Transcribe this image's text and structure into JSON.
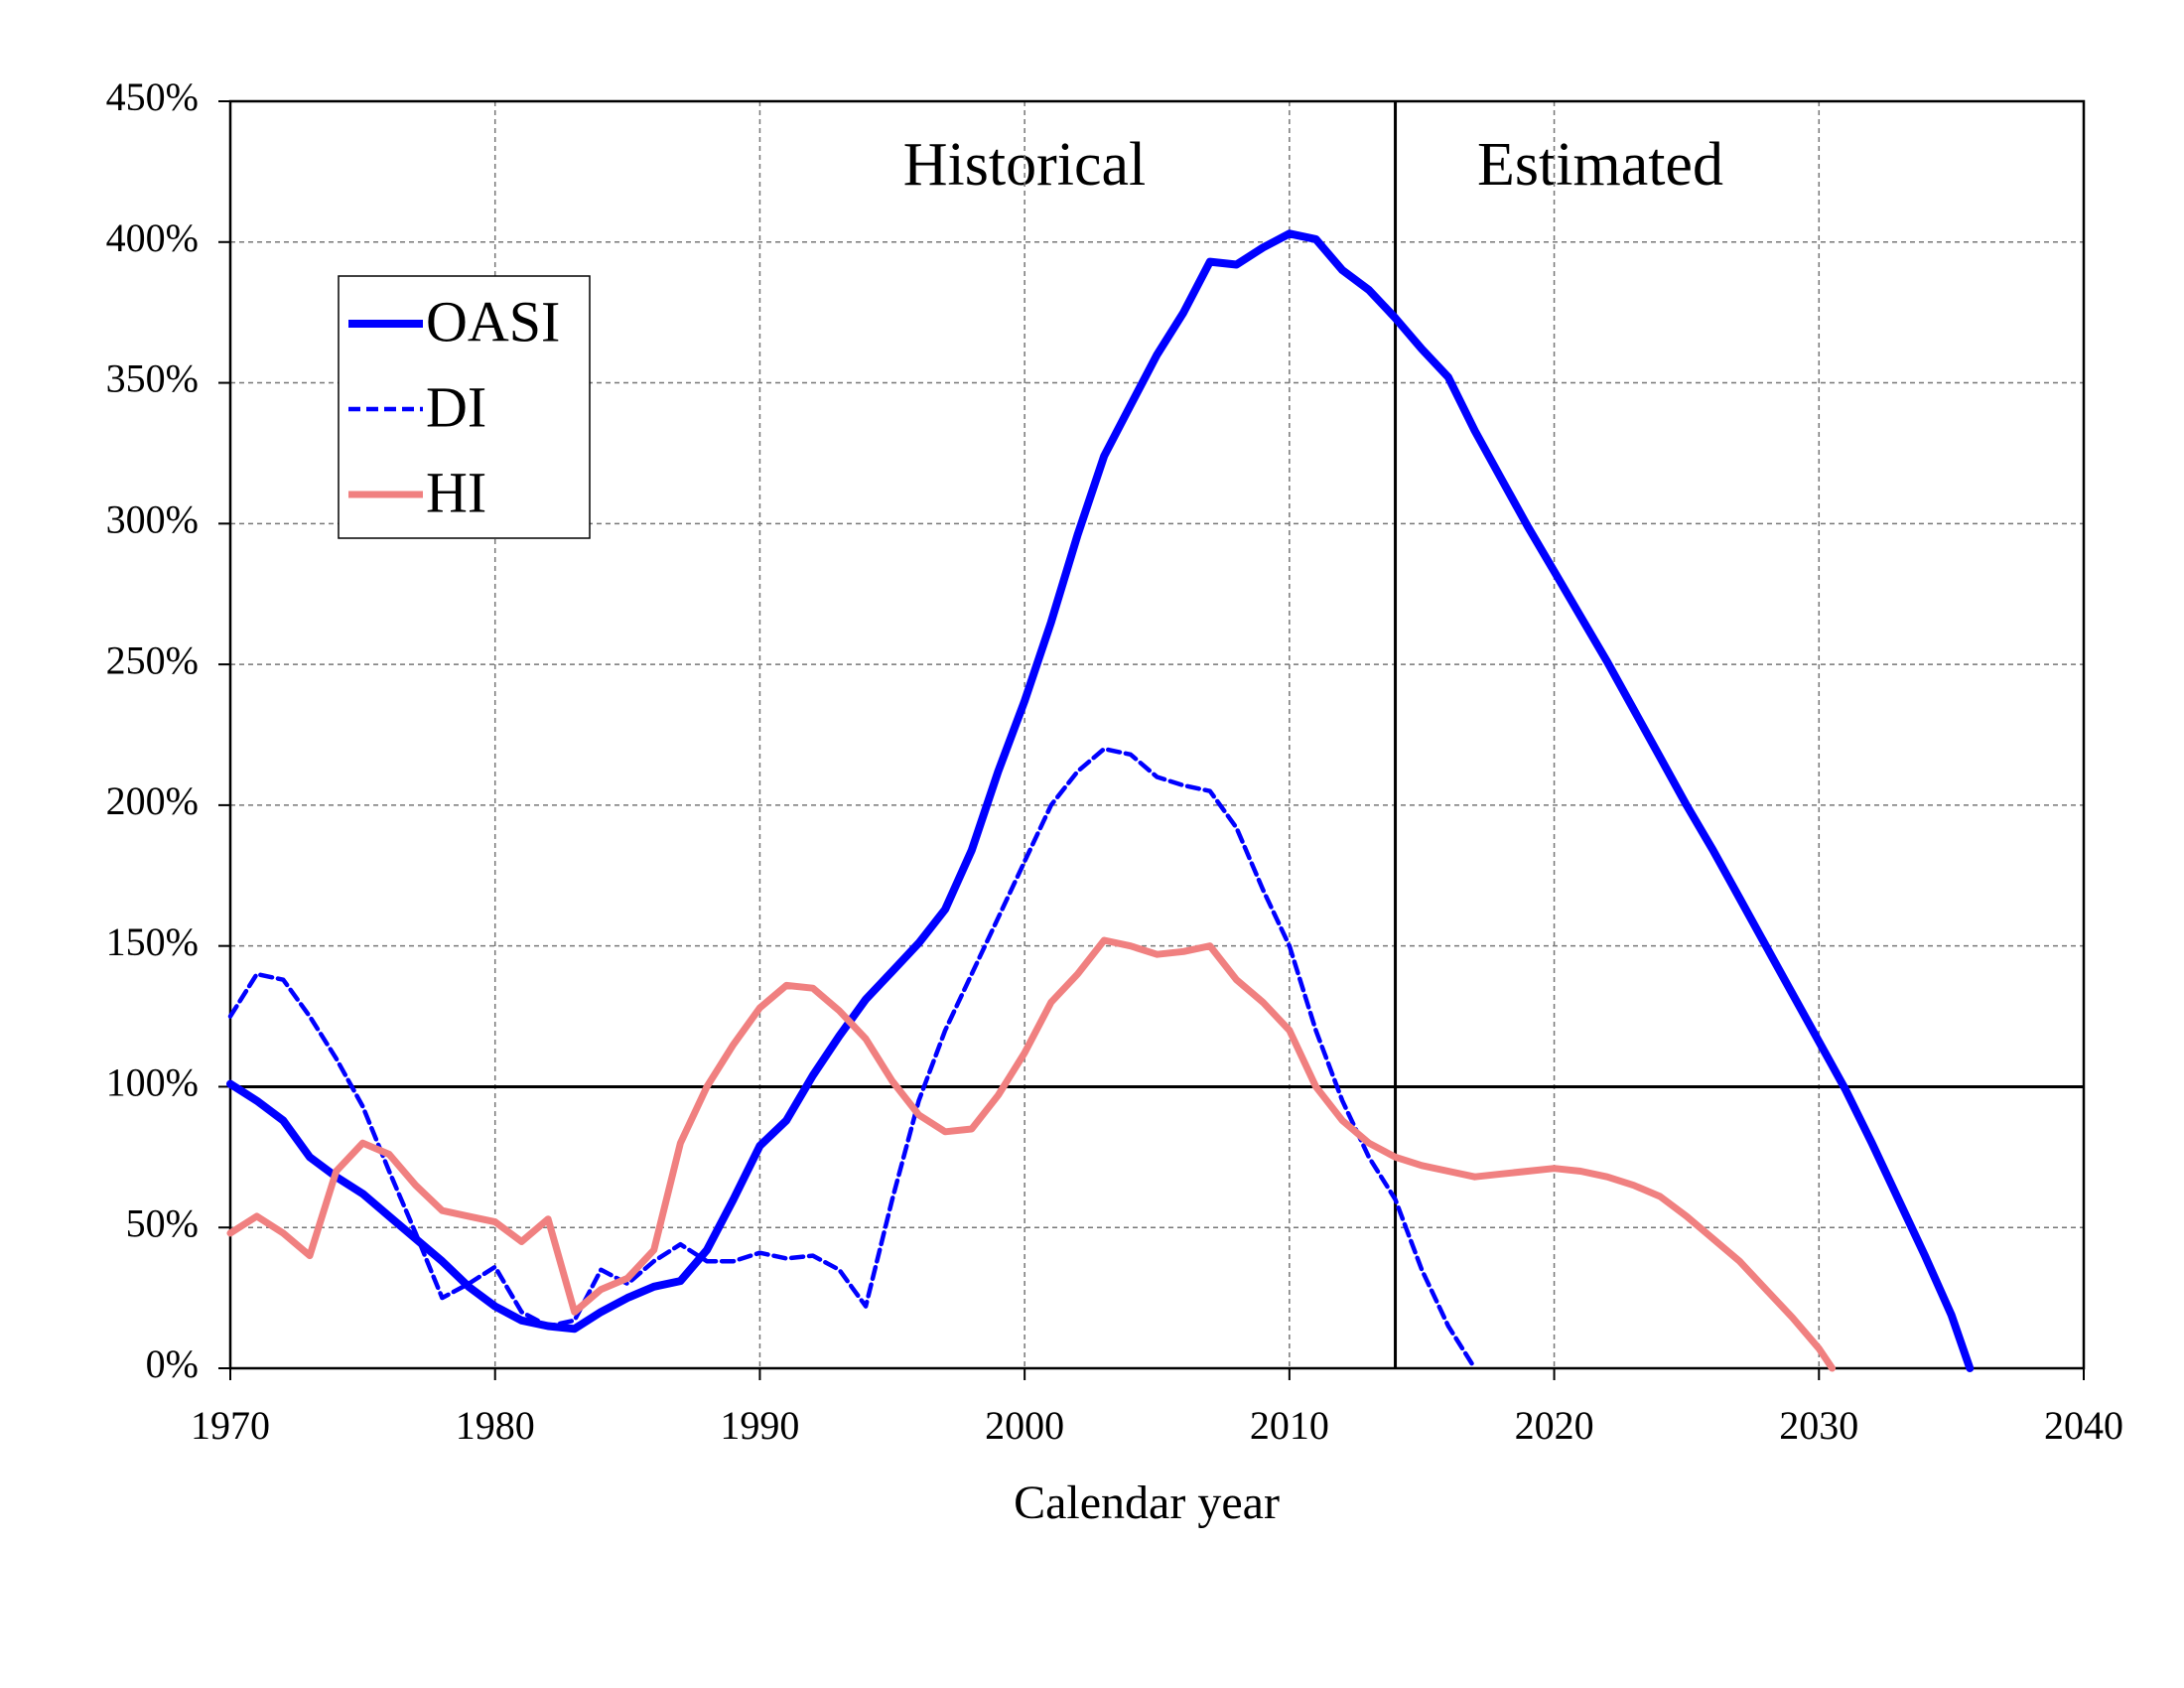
{
  "chart_data": {
    "type": "line",
    "x_label": "Calendar year",
    "annotations": [
      "Historical",
      "Estimated"
    ],
    "hline": 100,
    "vline": 2014,
    "xlim": [
      1970,
      2040
    ],
    "xticks": [
      1970,
      1980,
      1990,
      2000,
      2010,
      2020,
      2030,
      2040
    ],
    "ylim": [
      0,
      450
    ],
    "yticks": [
      {
        "value": 0,
        "label": "0%"
      },
      {
        "value": 50,
        "label": "50%"
      },
      {
        "value": 100,
        "label": "100%"
      },
      {
        "value": 150,
        "label": "150%"
      },
      {
        "value": 200,
        "label": "200%"
      },
      {
        "value": 250,
        "label": "250%"
      },
      {
        "value": 300,
        "label": "300%"
      },
      {
        "value": 350,
        "label": "350%"
      },
      {
        "value": 400,
        "label": "400%"
      },
      {
        "value": 450,
        "label": "450%"
      }
    ],
    "grid": true,
    "legend": "upper left",
    "series": [
      {
        "name": "OASI",
        "color": "#0000ff",
        "style": "solid",
        "x": [
          1970,
          1971,
          1972,
          1973,
          1974,
          1975,
          1976,
          1977,
          1978,
          1979,
          1980,
          1981,
          1982,
          1983,
          1984,
          1985,
          1986,
          1987,
          1988,
          1989,
          1990,
          1991,
          1992,
          1993,
          1994,
          1995,
          1996,
          1997,
          1998,
          1999,
          2000,
          2001,
          2002,
          2003,
          2004,
          2005,
          2006,
          2007,
          2008,
          2009,
          2010,
          2011,
          2012,
          2013,
          2014,
          2015,
          2016,
          2017,
          2018,
          2019,
          2020,
          2021,
          2022,
          2023,
          2024,
          2025,
          2026,
          2027,
          2028,
          2029,
          2030,
          2031,
          2032,
          2033,
          2034,
          2035,
          2035.7
        ],
        "values": [
          101,
          95,
          88,
          75,
          68,
          62,
          54,
          46,
          38,
          29,
          22,
          17,
          15,
          14,
          20,
          25,
          29,
          31,
          42,
          60,
          79,
          88,
          104,
          118,
          131,
          141,
          151,
          163,
          184,
          212,
          237,
          265,
          296,
          324,
          342,
          360,
          375,
          393,
          392,
          398,
          403,
          401,
          390,
          383,
          373,
          362,
          352,
          333,
          316,
          299,
          283,
          267,
          251,
          234,
          217,
          200,
          184,
          167,
          150,
          133,
          116,
          99,
          80,
          60,
          40,
          19,
          0
        ]
      },
      {
        "name": "DI",
        "color": "#0000ff",
        "style": "dashed",
        "x": [
          1970,
          1971,
          1972,
          1973,
          1974,
          1975,
          1976,
          1977,
          1978,
          1979,
          1980,
          1981,
          1982,
          1983,
          1984,
          1985,
          1986,
          1987,
          1988,
          1989,
          1990,
          1991,
          1992,
          1993,
          1994,
          1995,
          1996,
          1997,
          1998,
          1999,
          2000,
          2001,
          2002,
          2003,
          2004,
          2005,
          2006,
          2007,
          2008,
          2009,
          2010,
          2011,
          2012,
          2013,
          2014,
          2015,
          2016,
          2017
        ],
        "values": [
          125,
          140,
          138,
          125,
          110,
          93,
          70,
          48,
          25,
          30,
          36,
          20,
          15,
          17,
          35,
          30,
          38,
          44,
          38,
          38,
          41,
          39,
          40,
          35,
          22,
          60,
          95,
          120,
          140,
          160,
          180,
          200,
          212,
          220,
          218,
          210,
          207,
          205,
          192,
          170,
          150,
          120,
          95,
          75,
          60,
          35,
          15,
          0
        ]
      },
      {
        "name": "HI",
        "color": "#f08080",
        "style": "solid",
        "x": [
          1970,
          1971,
          1972,
          1973,
          1974,
          1975,
          1976,
          1977,
          1978,
          1979,
          1980,
          1981,
          1982,
          1983,
          1984,
          1985,
          1986,
          1987,
          1988,
          1989,
          1990,
          1991,
          1992,
          1993,
          1994,
          1995,
          1996,
          1997,
          1998,
          1999,
          2000,
          2001,
          2002,
          2003,
          2004,
          2005,
          2006,
          2007,
          2008,
          2009,
          2010,
          2011,
          2012,
          2013,
          2014,
          2015,
          2016,
          2017,
          2018,
          2019,
          2020,
          2021,
          2022,
          2023,
          2024,
          2025,
          2026,
          2027,
          2028,
          2029,
          2030,
          2030.5
        ],
        "values": [
          48,
          54,
          48,
          40,
          70,
          80,
          76,
          65,
          56,
          54,
          52,
          45,
          53,
          20,
          28,
          32,
          42,
          80,
          100,
          115,
          128,
          136,
          135,
          127,
          117,
          102,
          90,
          84,
          85,
          97,
          112,
          130,
          140,
          152,
          150,
          147,
          148,
          150,
          138,
          130,
          120,
          100,
          88,
          80,
          75,
          72,
          70,
          68,
          69,
          70,
          71,
          70,
          68,
          65,
          61,
          54,
          46,
          38,
          28,
          18,
          7,
          0
        ]
      }
    ]
  }
}
